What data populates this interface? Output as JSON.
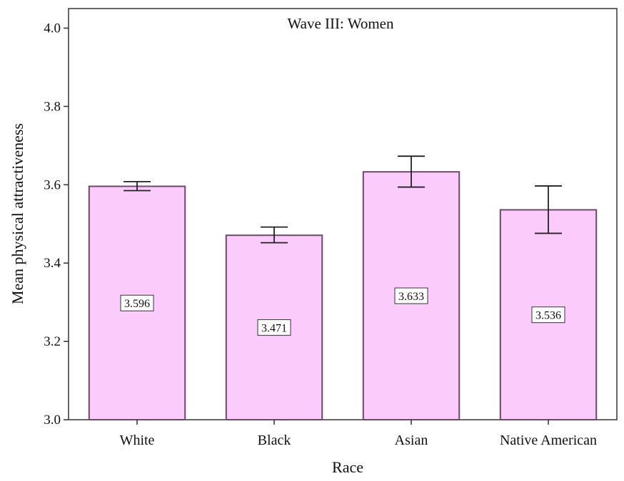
{
  "colors": {
    "bar_fill": "#fbccfb",
    "bar_stroke": "#6d4a6b",
    "axis": "#333333",
    "background": "#ffffff"
  },
  "chart_data": {
    "type": "bar",
    "title": "Wave III:  Women",
    "xlabel": "Race",
    "ylabel": "Mean physical attractiveness",
    "categories": [
      "White",
      "Black",
      "Asian",
      "Native American"
    ],
    "values": [
      3.596,
      3.471,
      3.633,
      3.536
    ],
    "data_labels": [
      "3.596",
      "3.471",
      "3.633",
      "3.536"
    ],
    "error_bars": [
      {
        "low": 3.585,
        "high": 3.608
      },
      {
        "low": 3.452,
        "high": 3.492
      },
      {
        "low": 3.594,
        "high": 3.673
      },
      {
        "low": 3.476,
        "high": 3.597
      }
    ],
    "ylim": [
      3.0,
      4.05
    ],
    "yticks": [
      3.0,
      3.2,
      3.4,
      3.6,
      3.8,
      4.0
    ],
    "ytick_labels": [
      "3.0",
      "3.2",
      "3.4",
      "3.6",
      "3.8",
      "4.0"
    ],
    "grid": false,
    "legend": "none"
  }
}
